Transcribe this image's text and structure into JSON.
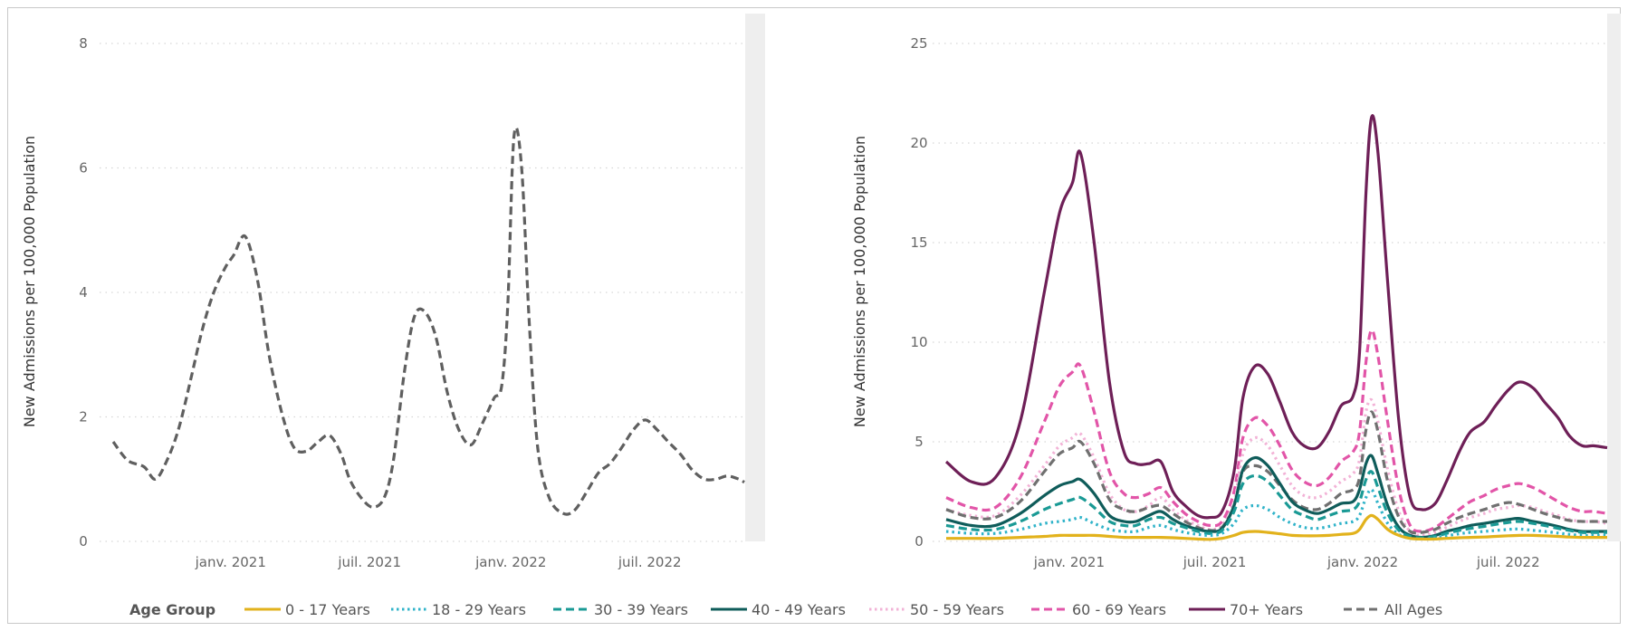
{
  "chart_data": [
    {
      "type": "line",
      "ylabel": "New Admissions per 100,000 Population",
      "ylim": [
        0,
        8
      ],
      "yticks": [
        "0",
        "2",
        "4",
        "6",
        "8"
      ],
      "xticks": [
        {
          "date": "2021-01-01",
          "label": "janv. 2021"
        },
        {
          "date": "2021-07-01",
          "label": "juil. 2021"
        },
        {
          "date": "2022-01-01",
          "label": "janv. 2022"
        },
        {
          "date": "2022-07-01",
          "label": "juil. 2022"
        }
      ],
      "xlim": [
        "2020-08-01",
        "2022-11-01"
      ],
      "grid": true,
      "series": [
        {
          "key": "all",
          "x": [
            "2020-08-01",
            "2020-08-20",
            "2020-09-10",
            "2020-09-25",
            "2020-10-10",
            "2020-10-25",
            "2020-11-10",
            "2020-11-25",
            "2020-12-10",
            "2020-12-25",
            "2021-01-05",
            "2021-01-20",
            "2021-02-05",
            "2021-02-20",
            "2021-03-10",
            "2021-03-25",
            "2021-04-10",
            "2021-04-25",
            "2021-05-10",
            "2021-05-25",
            "2021-06-05",
            "2021-06-20",
            "2021-07-05",
            "2021-07-20",
            "2021-08-01",
            "2021-08-15",
            "2021-08-28",
            "2021-09-10",
            "2021-09-25",
            "2021-10-10",
            "2021-10-25",
            "2021-11-10",
            "2021-11-25",
            "2021-12-10",
            "2021-12-20",
            "2021-12-28",
            "2022-01-05",
            "2022-01-15",
            "2022-01-25",
            "2022-02-05",
            "2022-02-20",
            "2022-03-10",
            "2022-03-25",
            "2022-04-10",
            "2022-04-25",
            "2022-05-10",
            "2022-05-25",
            "2022-06-10",
            "2022-06-25",
            "2022-07-10",
            "2022-07-25",
            "2022-08-10",
            "2022-08-25",
            "2022-09-10",
            "2022-09-25",
            "2022-10-10",
            "2022-10-25",
            "2022-11-01"
          ],
          "values": [
            1.6,
            1.3,
            1.2,
            1.0,
            1.3,
            1.8,
            2.6,
            3.4,
            4.0,
            4.4,
            4.6,
            4.9,
            4.2,
            3.0,
            2.0,
            1.5,
            1.45,
            1.6,
            1.7,
            1.4,
            1.0,
            0.7,
            0.55,
            0.7,
            1.3,
            2.7,
            3.6,
            3.7,
            3.3,
            2.4,
            1.8,
            1.55,
            1.9,
            2.3,
            2.5,
            3.8,
            6.5,
            6.0,
            3.5,
            1.5,
            0.7,
            0.45,
            0.5,
            0.8,
            1.1,
            1.25,
            1.5,
            1.8,
            1.95,
            1.8,
            1.6,
            1.4,
            1.15,
            1.0,
            1.0,
            1.05,
            1.0,
            0.95
          ],
          "color": "#5f5f5f",
          "dash": "dashed"
        }
      ]
    },
    {
      "type": "line",
      "ylabel": "New Admissions per 100,000 Population",
      "ylim": [
        0,
        25
      ],
      "yticks": [
        "0",
        "5",
        "10",
        "15",
        "20",
        "25"
      ],
      "xticks": [
        {
          "date": "2021-01-01",
          "label": "janv. 2021"
        },
        {
          "date": "2021-07-01",
          "label": "juil. 2021"
        },
        {
          "date": "2022-01-01",
          "label": "janv. 2022"
        },
        {
          "date": "2022-07-01",
          "label": "juil. 2022"
        }
      ],
      "xlim": [
        "2020-08-01",
        "2022-11-01"
      ],
      "grid": true,
      "legend_position": "bottom",
      "legend_title": "Age Group",
      "x": [
        "2020-08-01",
        "2020-09-01",
        "2020-10-01",
        "2020-11-01",
        "2020-12-01",
        "2020-12-20",
        "2021-01-05",
        "2021-01-15",
        "2021-02-01",
        "2021-02-20",
        "2021-03-10",
        "2021-03-25",
        "2021-04-10",
        "2021-04-25",
        "2021-05-10",
        "2021-05-25",
        "2021-06-10",
        "2021-06-25",
        "2021-07-10",
        "2021-07-25",
        "2021-08-05",
        "2021-08-20",
        "2021-09-05",
        "2021-09-20",
        "2021-10-05",
        "2021-10-20",
        "2021-11-05",
        "2021-11-20",
        "2021-12-05",
        "2021-12-20",
        "2021-12-28",
        "2022-01-05",
        "2022-01-12",
        "2022-01-20",
        "2022-02-01",
        "2022-02-15",
        "2022-03-01",
        "2022-03-15",
        "2022-04-01",
        "2022-04-15",
        "2022-05-01",
        "2022-05-15",
        "2022-06-01",
        "2022-06-15",
        "2022-07-01",
        "2022-07-15",
        "2022-08-01",
        "2022-08-15",
        "2022-09-01",
        "2022-09-15",
        "2022-10-01",
        "2022-10-15",
        "2022-11-01"
      ],
      "series": [
        {
          "key": "a70",
          "name": "70+ Years",
          "color": "#6e1f57",
          "dash": "solid",
          "values": [
            4.0,
            3.0,
            3.2,
            6.0,
            12.5,
            16.5,
            18.0,
            19.5,
            15.0,
            8.0,
            4.5,
            3.9,
            3.9,
            4.0,
            2.5,
            1.8,
            1.3,
            1.2,
            1.5,
            3.5,
            7.2,
            8.8,
            8.4,
            7.0,
            5.5,
            4.8,
            4.7,
            5.5,
            6.8,
            7.3,
            9.5,
            17.5,
            21.3,
            19.5,
            13.0,
            6.0,
            2.2,
            1.6,
            1.9,
            3.0,
            4.5,
            5.5,
            6.0,
            6.8,
            7.6,
            8.0,
            7.7,
            7.0,
            6.2,
            5.3,
            4.8,
            4.8,
            4.7
          ]
        },
        {
          "key": "a60",
          "name": "60 - 69 Years",
          "color": "#e255a8",
          "dash": "dashed",
          "values": [
            2.2,
            1.7,
            1.7,
            3.2,
            6.0,
            7.8,
            8.5,
            8.8,
            6.5,
            3.5,
            2.4,
            2.2,
            2.4,
            2.7,
            2.0,
            1.4,
            1.0,
            0.8,
            1.0,
            2.5,
            5.2,
            6.2,
            5.8,
            4.8,
            3.6,
            3.0,
            2.8,
            3.2,
            4.0,
            4.5,
            5.5,
            9.0,
            10.6,
            9.3,
            6.0,
            2.6,
            0.8,
            0.5,
            0.7,
            1.1,
            1.6,
            2.0,
            2.3,
            2.6,
            2.8,
            2.9,
            2.7,
            2.4,
            2.0,
            1.7,
            1.5,
            1.5,
            1.4
          ]
        },
        {
          "key": "a50",
          "name": "50 - 59 Years",
          "color": "#f2b2d6",
          "dash": "dotted",
          "values": [
            1.6,
            1.3,
            1.3,
            2.3,
            3.8,
            4.8,
            5.2,
            5.4,
            4.2,
            2.4,
            1.6,
            1.5,
            1.8,
            2.2,
            1.6,
            1.1,
            0.8,
            0.6,
            0.8,
            2.0,
            4.4,
            5.2,
            4.8,
            3.8,
            2.8,
            2.3,
            2.2,
            2.5,
            3.0,
            3.4,
            4.1,
            6.5,
            7.1,
            6.0,
            3.6,
            1.5,
            0.5,
            0.3,
            0.45,
            0.7,
            1.0,
            1.2,
            1.4,
            1.6,
            1.7,
            1.8,
            1.7,
            1.5,
            1.3,
            1.1,
            1.0,
            1.0,
            0.9
          ]
        },
        {
          "key": "all",
          "name": "All Ages",
          "color": "#707070",
          "dash": "dashed",
          "values": [
            1.6,
            1.2,
            1.2,
            2.0,
            3.5,
            4.4,
            4.7,
            5.0,
            3.9,
            2.1,
            1.6,
            1.5,
            1.7,
            1.8,
            1.4,
            1.0,
            0.7,
            0.55,
            0.7,
            1.8,
            3.5,
            3.8,
            3.5,
            2.8,
            2.1,
            1.7,
            1.6,
            1.9,
            2.4,
            2.6,
            3.2,
            5.6,
            6.5,
            5.5,
            3.0,
            1.2,
            0.5,
            0.45,
            0.6,
            0.9,
            1.2,
            1.4,
            1.6,
            1.8,
            1.95,
            1.85,
            1.6,
            1.4,
            1.2,
            1.05,
            1.0,
            1.0,
            1.0
          ]
        },
        {
          "key": "a40",
          "name": "40 - 49 Years",
          "color": "#0f5c5a",
          "dash": "solid",
          "values": [
            1.1,
            0.8,
            0.8,
            1.4,
            2.3,
            2.8,
            3.0,
            3.1,
            2.4,
            1.3,
            1.0,
            1.0,
            1.3,
            1.5,
            1.1,
            0.8,
            0.6,
            0.5,
            0.65,
            1.8,
            3.6,
            4.2,
            3.8,
            2.9,
            2.0,
            1.6,
            1.4,
            1.6,
            1.9,
            2.0,
            2.6,
            3.9,
            4.3,
            3.4,
            1.8,
            0.7,
            0.3,
            0.2,
            0.3,
            0.5,
            0.65,
            0.8,
            0.9,
            1.0,
            1.1,
            1.15,
            1.0,
            0.9,
            0.75,
            0.6,
            0.5,
            0.5,
            0.5
          ]
        },
        {
          "key": "a30",
          "name": "30 - 39 Years",
          "color": "#1a9a95",
          "dash": "dashed",
          "values": [
            0.8,
            0.6,
            0.6,
            1.0,
            1.6,
            1.9,
            2.1,
            2.2,
            1.7,
            1.0,
            0.8,
            0.8,
            1.1,
            1.2,
            0.9,
            0.7,
            0.5,
            0.4,
            0.55,
            1.5,
            2.9,
            3.3,
            3.0,
            2.3,
            1.6,
            1.3,
            1.1,
            1.3,
            1.5,
            1.6,
            2.0,
            3.1,
            3.5,
            2.7,
            1.4,
            0.55,
            0.25,
            0.18,
            0.25,
            0.4,
            0.55,
            0.65,
            0.75,
            0.85,
            0.95,
            1.0,
            0.9,
            0.8,
            0.65,
            0.55,
            0.45,
            0.45,
            0.45
          ]
        },
        {
          "key": "a18",
          "name": "18 - 29 Years",
          "color": "#2fb3c9",
          "dash": "dotted",
          "values": [
            0.5,
            0.4,
            0.4,
            0.6,
            0.9,
            1.0,
            1.1,
            1.2,
            0.9,
            0.6,
            0.5,
            0.5,
            0.7,
            0.8,
            0.6,
            0.45,
            0.35,
            0.3,
            0.4,
            0.9,
            1.6,
            1.8,
            1.6,
            1.2,
            0.9,
            0.7,
            0.65,
            0.75,
            0.9,
            1.0,
            1.3,
            2.2,
            2.6,
            1.9,
            0.9,
            0.35,
            0.15,
            0.12,
            0.18,
            0.28,
            0.38,
            0.45,
            0.5,
            0.55,
            0.6,
            0.62,
            0.55,
            0.5,
            0.42,
            0.35,
            0.3,
            0.3,
            0.3
          ]
        },
        {
          "key": "a0",
          "name": "0 - 17 Years",
          "color": "#e2b21c",
          "dash": "solid",
          "values": [
            0.15,
            0.15,
            0.15,
            0.2,
            0.25,
            0.3,
            0.3,
            0.3,
            0.3,
            0.25,
            0.2,
            0.2,
            0.2,
            0.2,
            0.18,
            0.15,
            0.12,
            0.1,
            0.15,
            0.3,
            0.45,
            0.5,
            0.45,
            0.38,
            0.3,
            0.28,
            0.28,
            0.3,
            0.35,
            0.4,
            0.6,
            1.1,
            1.3,
            1.1,
            0.6,
            0.3,
            0.15,
            0.12,
            0.12,
            0.15,
            0.18,
            0.2,
            0.22,
            0.25,
            0.28,
            0.3,
            0.3,
            0.28,
            0.25,
            0.22,
            0.2,
            0.2,
            0.2
          ]
        }
      ],
      "legend_order": [
        "a0",
        "a18",
        "a30",
        "a40",
        "a50",
        "a60",
        "a70",
        "all"
      ]
    }
  ]
}
